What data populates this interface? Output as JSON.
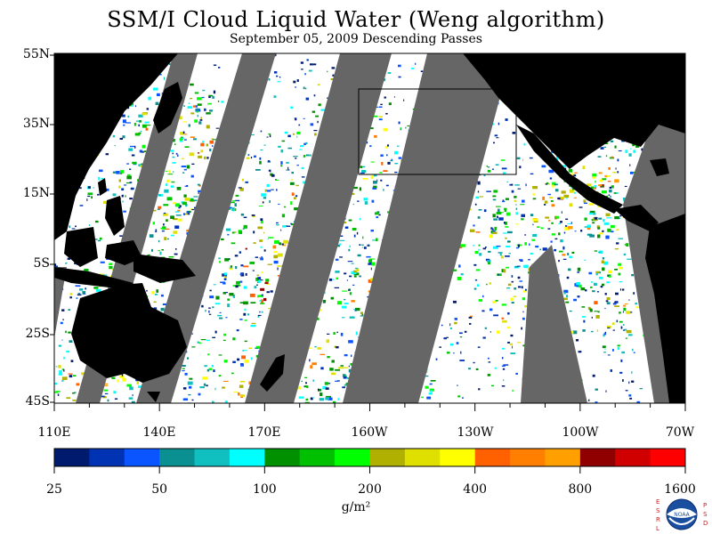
{
  "title": "SSM/I Cloud Liquid Water (Weng algorithm)",
  "subtitle": "September 05, 2009  Descending Passes",
  "latitude_labels": [
    "55N",
    "35N",
    "15N",
    "5S",
    "25S",
    "45S"
  ],
  "longitude_labels": [
    "110E",
    "140E",
    "170E",
    "160W",
    "130W",
    "100W",
    "70W"
  ],
  "colorbar": {
    "tick_labels": [
      "25",
      "50",
      "100",
      "200",
      "400",
      "800",
      "1600"
    ],
    "unit": "g/m²",
    "colors": [
      "#001a6e",
      "#0033b4",
      "#0a55ff",
      "#0a9090",
      "#10c0c0",
      "#00ffff",
      "#009000",
      "#00c000",
      "#00ff00",
      "#b0b000",
      "#e0e000",
      "#ffff00",
      "#ff6000",
      "#ff8000",
      "#ffa000",
      "#900000",
      "#d00000",
      "#ff0000"
    ]
  },
  "map_colors": {
    "no_data_swath_gap": "#666666",
    "land": "#000000",
    "clear_ocean": "#ffffff"
  },
  "logo": {
    "text_left": "ESRL",
    "text_right": "PSD",
    "seal": "NOAA"
  }
}
